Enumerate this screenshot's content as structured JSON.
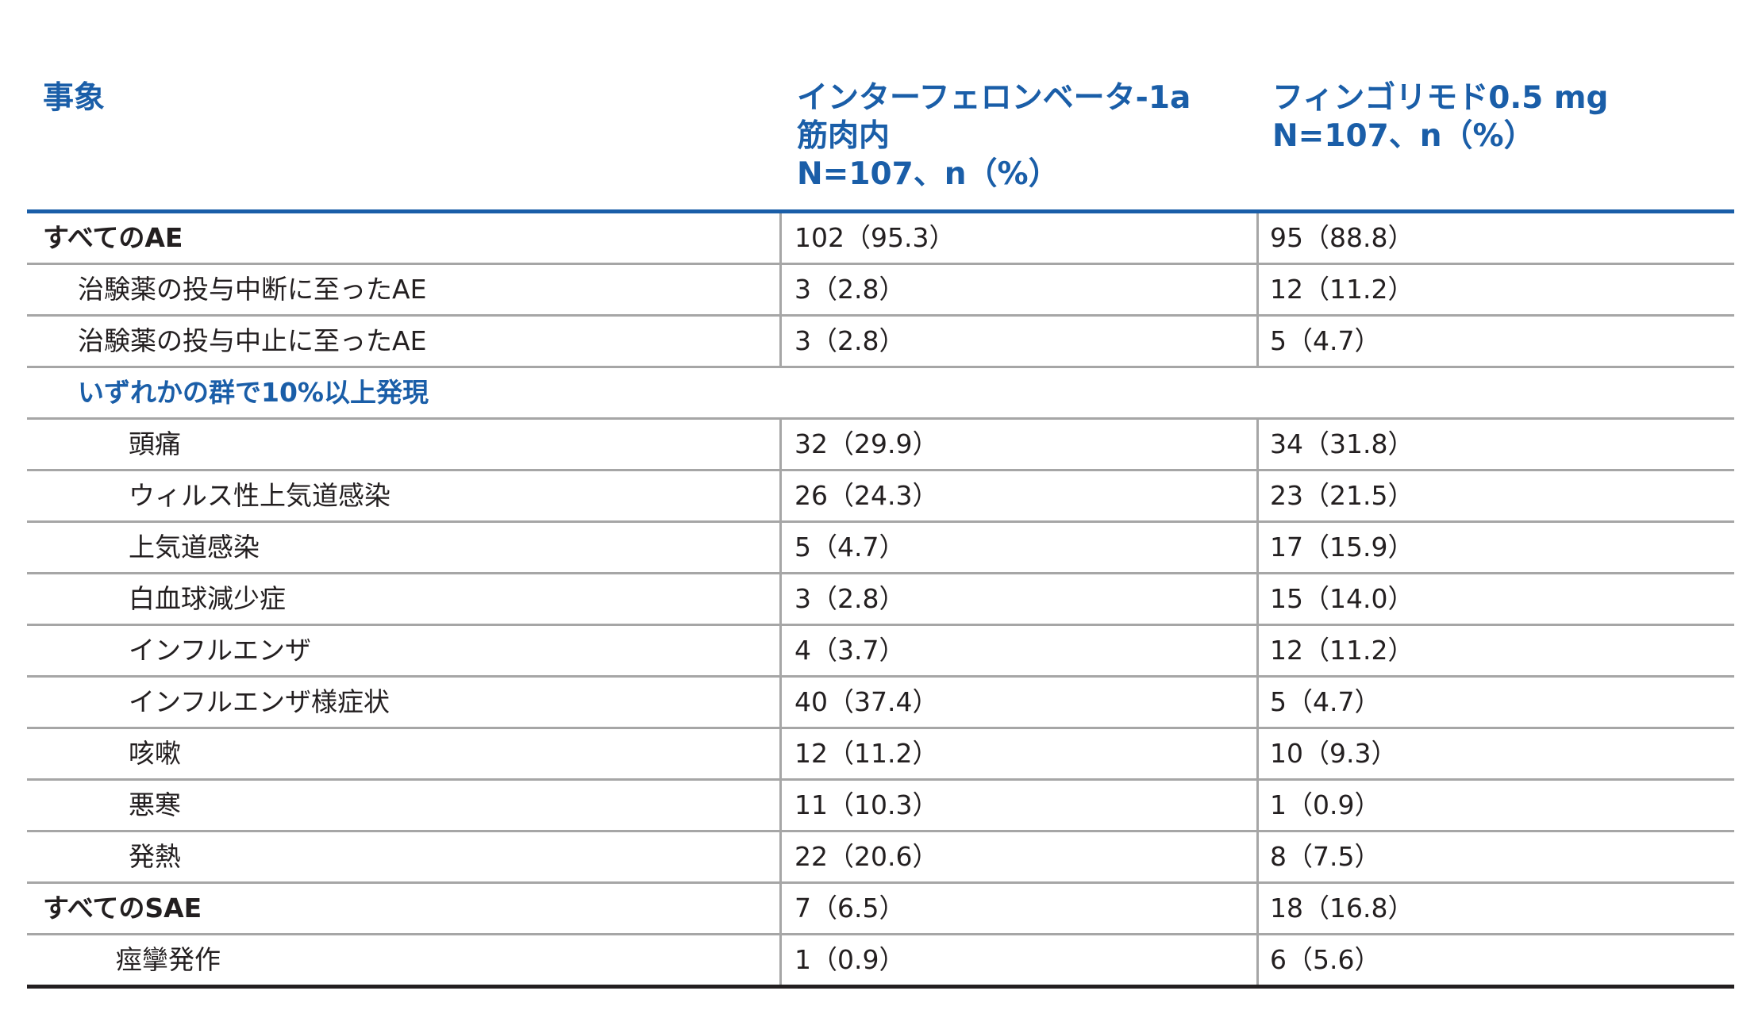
{
  "header": {
    "event": "事象",
    "col1": [
      "インターフェロンベータ-1a",
      "筋肉内",
      "N=107、n（%）"
    ],
    "col2": [
      "フィンゴリモド0.5 mg",
      "N=107、n（%）"
    ]
  },
  "rows": [
    {
      "label": "すべてのAE",
      "a": "102（95.3）",
      "b": "95（88.8）"
    },
    {
      "label": "治験薬の投与中断に至ったAE",
      "a": "3（2.8）",
      "b": "12（11.2）"
    },
    {
      "label": "治験薬の投与中止に至ったAE",
      "a": "3（2.8）",
      "b": "5（4.7）"
    },
    {
      "label": "いずれかの群で10%以上発現"
    },
    {
      "label": "頭痛",
      "a": "32（29.9）",
      "b": "34（31.8）"
    },
    {
      "label": "ウィルス性上気道感染",
      "a": "26（24.3）",
      "b": "23（21.5）"
    },
    {
      "label": "上気道感染",
      "a": "5（4.7）",
      "b": "17（15.9）"
    },
    {
      "label": "白血球減少症",
      "a": "3（2.8）",
      "b": "15（14.0）"
    },
    {
      "label": "インフルエンザ",
      "a": "4（3.7）",
      "b": "12（11.2）"
    },
    {
      "label": "インフルエンザ様症状",
      "a": "40（37.4）",
      "b": "5（4.7）"
    },
    {
      "label": "咳嗽",
      "a": "12（11.2）",
      "b": "10（9.3）"
    },
    {
      "label": "悪寒",
      "a": "11（10.3）",
      "b": "1（0.9）"
    },
    {
      "label": "発熱",
      "a": "22（20.6）",
      "b": "8（7.5）"
    },
    {
      "label": "すべてのSAE",
      "a": "7（6.5）",
      "b": "18（16.8）"
    },
    {
      "label": "痙攣発作",
      "a": "1（0.9）",
      "b": "6（5.6）"
    }
  ]
}
